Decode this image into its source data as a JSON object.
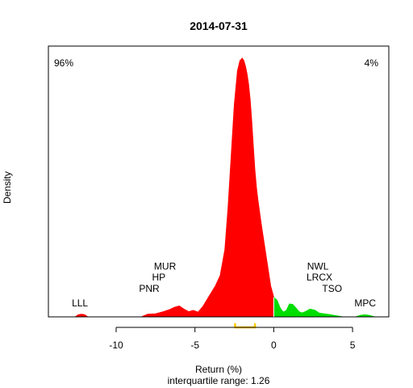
{
  "chart_data": {
    "type": "area",
    "title": "2014-07-31",
    "xlabel": "Return (%)",
    "ylabel": "Density",
    "subtitle": "interquartile range: 1.26",
    "xlim": [
      -14.3,
      7.3
    ],
    "ylim": [
      0,
      1.0
    ],
    "xticks": [
      -10,
      -5,
      0,
      5
    ],
    "xtick_labels": [
      "-10",
      "-5",
      "0",
      "5"
    ],
    "negative_share": "96%",
    "positive_share": "4%",
    "colors": {
      "negative": "#ff0000",
      "positive": "#00dd00",
      "iqr": "#ffcc00",
      "neg_text": "#ff0000",
      "pos_text": "#009900"
    },
    "iqr_range": [
      -2.45,
      -1.19
    ],
    "series": [
      {
        "x": [
          -12.6,
          -12.4,
          -12.2,
          -12.0,
          -11.8,
          -8.4,
          -8.0,
          -7.5,
          -7.0,
          -6.6,
          -6.3,
          -6.0,
          -5.7,
          -5.4,
          -5.1,
          -4.8,
          -4.5,
          -4.3,
          -4.0,
          -3.7,
          -3.4,
          -3.1,
          -2.9,
          -2.7,
          -2.5,
          -2.3,
          -2.15,
          -2.0,
          -1.9,
          -1.8,
          -1.7,
          -1.6,
          -1.5,
          -1.4,
          -1.3,
          -1.2,
          -1.1,
          -1.0,
          -0.8,
          -0.6,
          -0.4,
          -0.2,
          0.0,
          0.2,
          0.4,
          0.6,
          0.8,
          1.0,
          1.2,
          1.4,
          1.6,
          1.8,
          2.0,
          2.3,
          2.6,
          2.9,
          3.2,
          3.6,
          4.0,
          4.4,
          5.2,
          5.5,
          5.8,
          6.1,
          6.4
        ],
        "y": [
          0.0,
          0.008,
          0.01,
          0.008,
          0.0,
          0.0,
          0.01,
          0.012,
          0.02,
          0.028,
          0.037,
          0.042,
          0.03,
          0.02,
          0.025,
          0.018,
          0.04,
          0.06,
          0.09,
          0.12,
          0.16,
          0.26,
          0.42,
          0.62,
          0.82,
          0.95,
          0.99,
          1.0,
          0.99,
          0.97,
          0.94,
          0.9,
          0.84,
          0.76,
          0.66,
          0.57,
          0.5,
          0.45,
          0.36,
          0.28,
          0.2,
          0.12,
          0.075,
          0.065,
          0.035,
          0.018,
          0.025,
          0.05,
          0.048,
          0.035,
          0.02,
          0.015,
          0.02,
          0.03,
          0.026,
          0.014,
          0.012,
          0.008,
          0.004,
          0.0,
          0.0,
          0.006,
          0.008,
          0.005,
          0.0
        ]
      }
    ],
    "annotations": [
      {
        "text": "LLL",
        "x": -12.3,
        "y": 0.04
      },
      {
        "text": "PNR",
        "x": -7.9,
        "y": 0.097
      },
      {
        "text": "HP",
        "x": -7.3,
        "y": 0.14
      },
      {
        "text": "MUR",
        "x": -6.9,
        "y": 0.183
      },
      {
        "text": "NWL",
        "x": 2.8,
        "y": 0.183
      },
      {
        "text": "LRCX",
        "x": 2.9,
        "y": 0.14
      },
      {
        "text": "TSO",
        "x": 3.7,
        "y": 0.097
      },
      {
        "text": "MPC",
        "x": 5.8,
        "y": 0.04
      }
    ]
  }
}
